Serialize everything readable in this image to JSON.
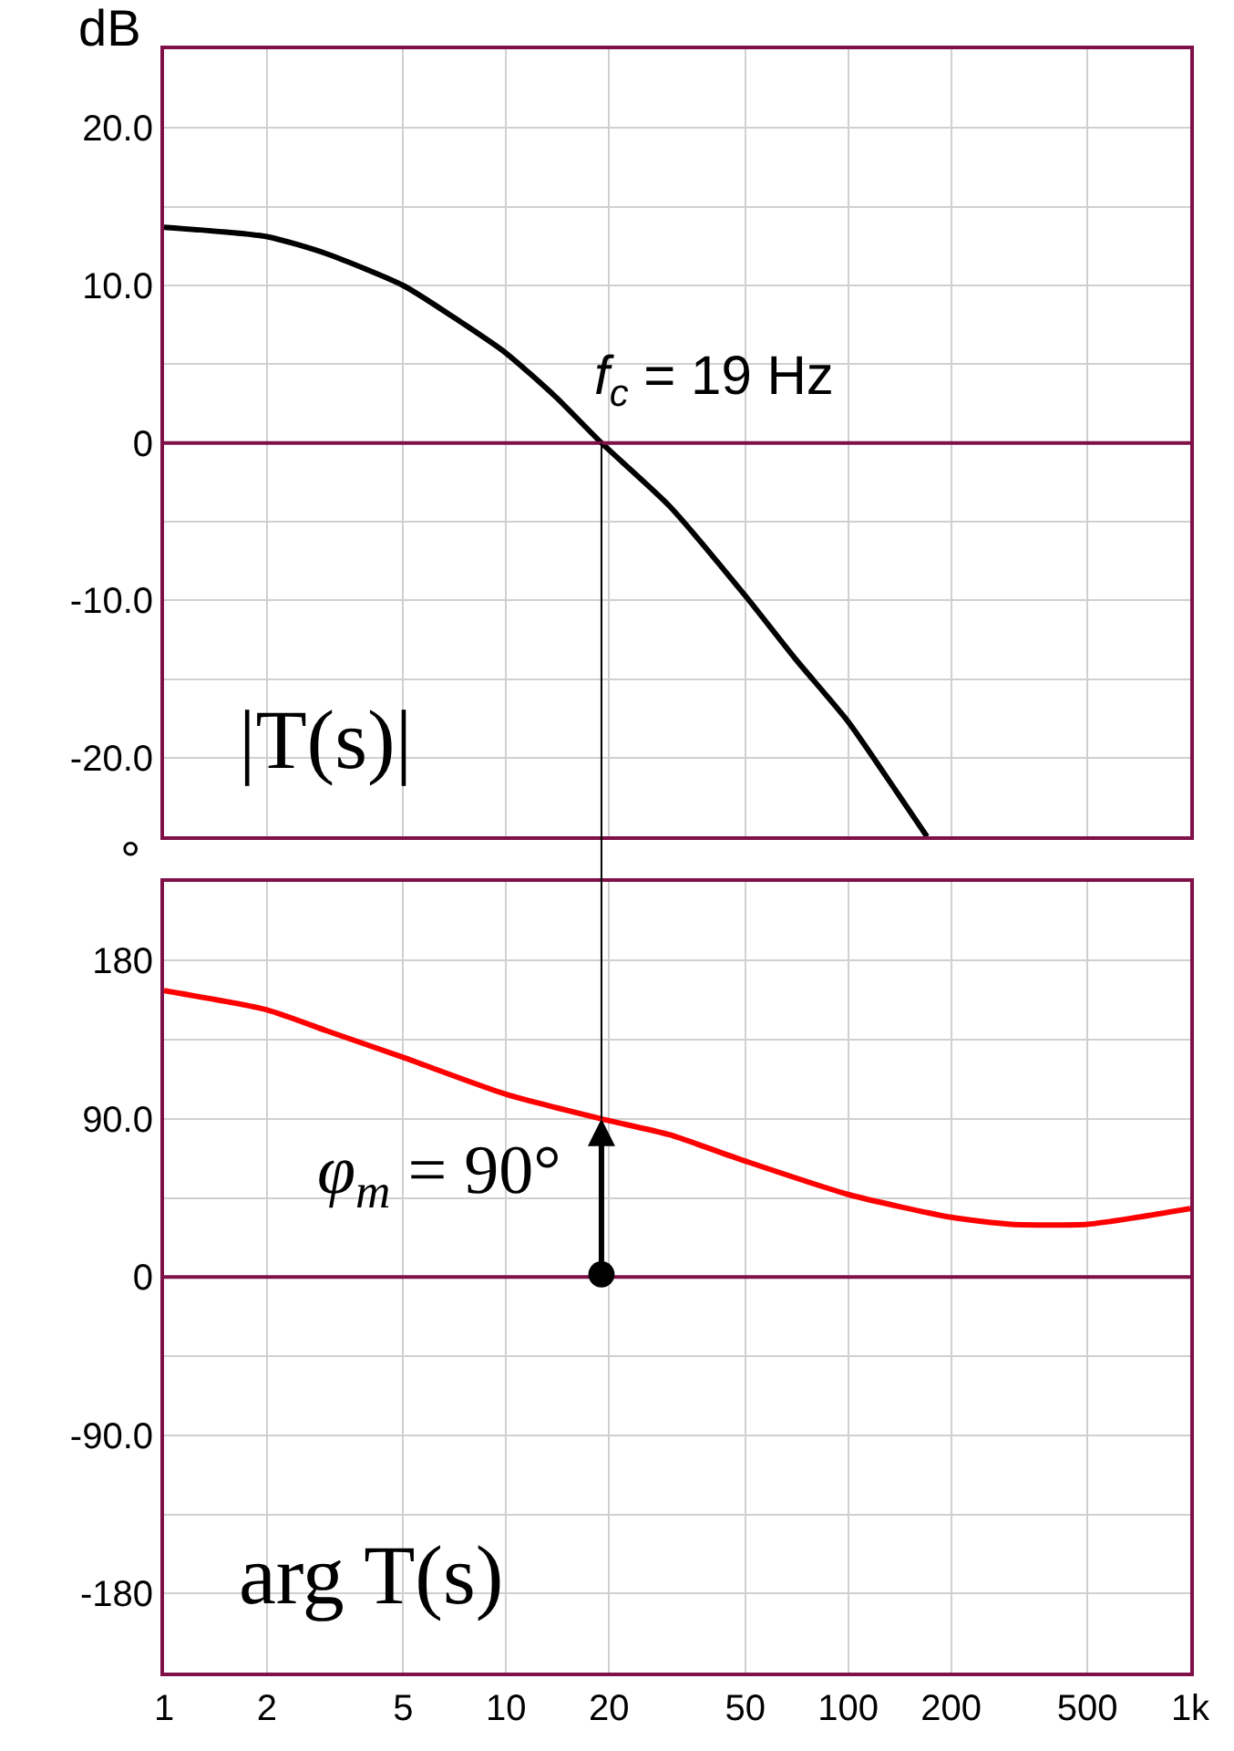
{
  "chart_data": [
    {
      "type": "line",
      "ylabel": "dB",
      "log": "x",
      "xlim": [
        1,
        1000
      ],
      "xticks": [
        1,
        2,
        5,
        10,
        20,
        50,
        100,
        200,
        500,
        1000
      ],
      "ylim": [
        -25,
        25
      ],
      "yticks": [
        {
          "value": -20,
          "label": "-20.0"
        },
        {
          "value": -15,
          "label": null
        },
        {
          "value": -10,
          "label": "-10.0"
        },
        {
          "value": -5,
          "label": null
        },
        0,
        {
          "value": 5,
          "label": null
        },
        {
          "value": 10,
          "label": "10.0"
        },
        {
          "value": 15,
          "label": null
        },
        {
          "value": 20,
          "label": "20.0"
        }
      ],
      "tick_labels": "y",
      "grid": true,
      "marker": "none",
      "line_style": "solid",
      "series": [
        {
          "color": "#000000",
          "x": [
            1,
            2,
            3,
            5,
            7,
            10,
            14,
            19,
            30,
            50,
            70,
            100,
            140,
            170
          ],
          "values": [
            13.7,
            13.1,
            12.0,
            10.0,
            8.0,
            5.7,
            2.9,
            0,
            -4,
            -9.7,
            -13.7,
            -17.7,
            -22.3,
            -25
          ]
        }
      ],
      "ref_lines": [
        {
          "axis": "y",
          "value": 0,
          "color": "#7f1048"
        }
      ],
      "annotations": [
        {
          "text": "f$_{c}$ = 19 Hz",
          "x": 19,
          "y": 0
        },
        "|T(s)|"
      ]
    },
    {
      "type": "line",
      "ylabel": "°",
      "log": "x",
      "xlim": [
        1,
        1000
      ],
      "xticks": [
        1,
        2,
        5,
        10,
        20,
        50,
        100,
        200,
        500,
        {
          "value": 1000,
          "label": "1k"
        }
      ],
      "ylim": [
        -225,
        225
      ],
      "yticks": [
        {
          "value": -180,
          "label": "-180"
        },
        {
          "value": -135,
          "label": null
        },
        {
          "value": -90,
          "label": "-90.0"
        },
        {
          "value": -45,
          "label": null
        },
        0,
        {
          "value": 45,
          "label": null
        },
        {
          "value": 90,
          "label": "90.0"
        },
        {
          "value": 135,
          "label": null
        },
        {
          "value": 180,
          "label": "180"
        }
      ],
      "grid": true,
      "marker": "none",
      "line_style": "solid",
      "series": [
        {
          "color": "#ff0000",
          "x": [
            1,
            2,
            3,
            5,
            10,
            19,
            30,
            50,
            100,
            200,
            300,
            500,
            700,
            1000
          ],
          "values": [
            163,
            152,
            140,
            125,
            104,
            90,
            81,
            66,
            47,
            34,
            30,
            30,
            34,
            39
          ]
        }
      ],
      "ref_lines": [
        {
          "axis": "y",
          "value": 0,
          "color": "#7f1048"
        }
      ],
      "annotations": [
        {
          "text": "φ$_{m}$ = 90°",
          "x": 19,
          "y": 90
        },
        "arg T(s)"
      ]
    }
  ]
}
